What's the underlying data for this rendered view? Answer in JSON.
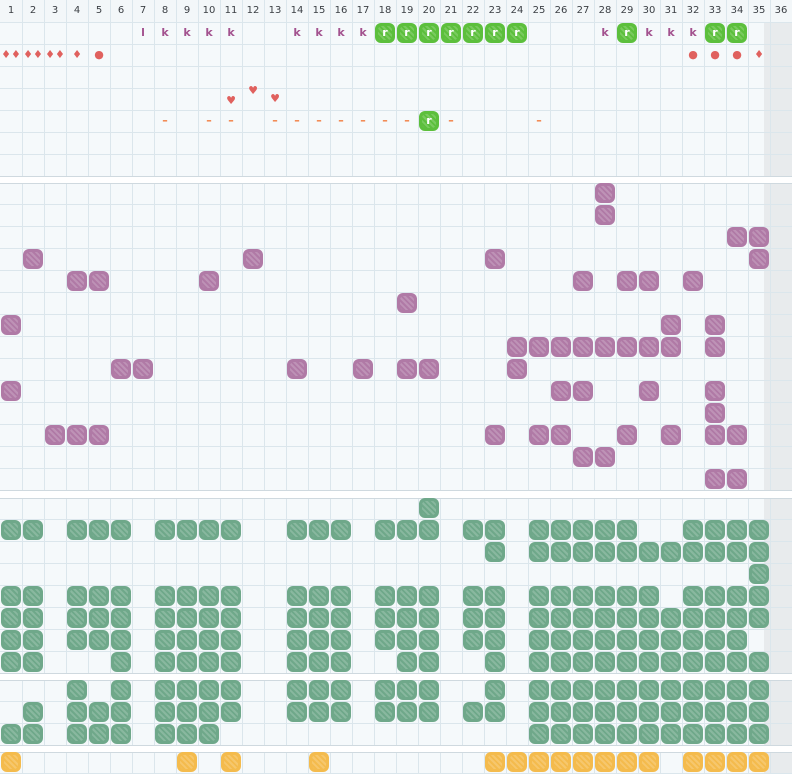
{
  "columns": [
    "1",
    "2",
    "3",
    "4",
    "5",
    "6",
    "7",
    "8",
    "9",
    "10",
    "11",
    "12",
    "13",
    "14",
    "15",
    "16",
    "17",
    "18",
    "19",
    "20",
    "21",
    "22",
    "23",
    "24",
    "25",
    "26",
    "27",
    "28",
    "29",
    "30",
    "31",
    "32",
    "33",
    "34",
    "35",
    "36"
  ],
  "colors": {
    "purple": "#b07aa6",
    "green": "#6fa88a",
    "orange": "#f4bb4d",
    "lime": "#5cbf3c",
    "accent_red": "#e0615e",
    "dash": "#f27b3c"
  },
  "icons": {
    "k": "k",
    "l": "l",
    "dash": "–",
    "heart": "♥",
    "drop": "♦",
    "dot": "●"
  },
  "top_rows": {
    "row1": [
      {
        "col": 7,
        "t": "l"
      },
      {
        "col": 8,
        "t": "k"
      },
      {
        "col": 9,
        "t": "k"
      },
      {
        "col": 10,
        "t": "k"
      },
      {
        "col": 11,
        "t": "k"
      },
      {
        "col": 14,
        "t": "k"
      },
      {
        "col": 15,
        "t": "k"
      },
      {
        "col": 16,
        "t": "k"
      },
      {
        "col": 17,
        "t": "k"
      },
      {
        "col": 28,
        "t": "k"
      },
      {
        "col": 30,
        "t": "k"
      },
      {
        "col": 31,
        "t": "k"
      },
      {
        "col": 32,
        "t": "k"
      }
    ],
    "row1_lime": [
      18,
      19,
      20,
      21,
      22,
      23,
      24,
      29,
      33,
      34
    ],
    "row2": [
      {
        "col": 1,
        "t": "♦♦"
      },
      {
        "col": 2,
        "t": "♦♦"
      },
      {
        "col": 3,
        "t": "♦♦"
      },
      {
        "col": 4,
        "t": "♦"
      },
      {
        "col": 5,
        "t": "●"
      },
      {
        "col": 32,
        "t": "●"
      },
      {
        "col": 33,
        "t": "●"
      },
      {
        "col": 34,
        "t": "●"
      },
      {
        "col": 35,
        "t": "♦"
      }
    ],
    "row4": [
      {
        "col": 11,
        "t": "♥"
      },
      {
        "col": 12,
        "t": "♥"
      },
      {
        "col": 13,
        "t": "♥"
      }
    ],
    "row5": [
      {
        "col": 8,
        "t": "–"
      },
      {
        "col": 10,
        "t": "–"
      },
      {
        "col": 11,
        "t": "–"
      },
      {
        "col": 13,
        "t": "–"
      },
      {
        "col": 14,
        "t": "–"
      },
      {
        "col": 15,
        "t": "–"
      },
      {
        "col": 16,
        "t": "–"
      },
      {
        "col": 17,
        "t": "–"
      },
      {
        "col": 18,
        "t": "–"
      },
      {
        "col": 19,
        "t": "–"
      },
      {
        "col": 21,
        "t": "–"
      },
      {
        "col": 25,
        "t": "–"
      }
    ],
    "row5_lime": [
      20
    ]
  },
  "purple": [
    [
      28,
      0
    ],
    [
      28,
      1
    ],
    [
      34,
      2
    ],
    [
      35,
      2
    ],
    [
      2,
      3
    ],
    [
      12,
      3
    ],
    [
      23,
      3
    ],
    [
      35,
      3
    ],
    [
      4,
      4
    ],
    [
      5,
      4
    ],
    [
      10,
      4
    ],
    [
      27,
      4
    ],
    [
      29,
      4
    ],
    [
      30,
      4
    ],
    [
      32,
      4
    ],
    [
      19,
      5
    ],
    [
      1,
      6
    ],
    [
      31,
      6
    ],
    [
      33,
      6
    ],
    [
      24,
      7
    ],
    [
      25,
      7
    ],
    [
      26,
      7
    ],
    [
      27,
      7
    ],
    [
      28,
      7
    ],
    [
      29,
      7
    ],
    [
      30,
      7
    ],
    [
      31,
      7
    ],
    [
      33,
      7
    ],
    [
      6,
      8
    ],
    [
      7,
      8
    ],
    [
      14,
      8
    ],
    [
      17,
      8
    ],
    [
      19,
      8
    ],
    [
      20,
      8
    ],
    [
      24,
      8
    ],
    [
      1,
      9
    ],
    [
      26,
      9
    ],
    [
      27,
      9
    ],
    [
      30,
      9
    ],
    [
      33,
      9
    ],
    [
      33,
      10
    ],
    [
      3,
      11
    ],
    [
      4,
      11
    ],
    [
      5,
      11
    ],
    [
      23,
      11
    ],
    [
      25,
      11
    ],
    [
      26,
      11
    ],
    [
      29,
      11
    ],
    [
      31,
      11
    ],
    [
      33,
      11
    ],
    [
      34,
      11
    ],
    [
      27,
      12
    ],
    [
      28,
      12
    ],
    [
      33,
      13
    ],
    [
      34,
      13
    ]
  ],
  "green_top": [
    [
      20,
      0
    ],
    [
      1,
      1
    ],
    [
      2,
      1
    ],
    [
      4,
      1
    ],
    [
      5,
      1
    ],
    [
      6,
      1
    ],
    [
      8,
      1
    ],
    [
      9,
      1
    ],
    [
      10,
      1
    ],
    [
      11,
      1
    ],
    [
      14,
      1
    ],
    [
      15,
      1
    ],
    [
      16,
      1
    ],
    [
      18,
      1
    ],
    [
      19,
      1
    ],
    [
      20,
      1
    ],
    [
      22,
      1
    ],
    [
      23,
      1
    ],
    [
      25,
      1
    ],
    [
      26,
      1
    ],
    [
      27,
      1
    ],
    [
      28,
      1
    ],
    [
      29,
      1
    ],
    [
      32,
      1
    ],
    [
      33,
      1
    ],
    [
      34,
      1
    ],
    [
      35,
      1
    ],
    [
      23,
      2
    ],
    [
      25,
      2
    ],
    [
      26,
      2
    ],
    [
      27,
      2
    ],
    [
      28,
      2
    ],
    [
      29,
      2
    ],
    [
      30,
      2
    ],
    [
      31,
      2
    ],
    [
      32,
      2
    ],
    [
      33,
      2
    ],
    [
      34,
      2
    ],
    [
      35,
      2
    ],
    [
      35,
      3
    ],
    [
      1,
      4
    ],
    [
      2,
      4
    ],
    [
      4,
      4
    ],
    [
      5,
      4
    ],
    [
      6,
      4
    ],
    [
      8,
      4
    ],
    [
      9,
      4
    ],
    [
      10,
      4
    ],
    [
      11,
      4
    ],
    [
      14,
      4
    ],
    [
      15,
      4
    ],
    [
      16,
      4
    ],
    [
      18,
      4
    ],
    [
      19,
      4
    ],
    [
      20,
      4
    ],
    [
      22,
      4
    ],
    [
      23,
      4
    ],
    [
      25,
      4
    ],
    [
      26,
      4
    ],
    [
      27,
      4
    ],
    [
      28,
      4
    ],
    [
      29,
      4
    ],
    [
      30,
      4
    ],
    [
      32,
      4
    ],
    [
      33,
      4
    ],
    [
      34,
      4
    ],
    [
      35,
      4
    ],
    [
      1,
      5
    ],
    [
      2,
      5
    ],
    [
      4,
      5
    ],
    [
      5,
      5
    ],
    [
      6,
      5
    ],
    [
      8,
      5
    ],
    [
      9,
      5
    ],
    [
      10,
      5
    ],
    [
      11,
      5
    ],
    [
      14,
      5
    ],
    [
      15,
      5
    ],
    [
      16,
      5
    ],
    [
      18,
      5
    ],
    [
      19,
      5
    ],
    [
      20,
      5
    ],
    [
      22,
      5
    ],
    [
      23,
      5
    ],
    [
      25,
      5
    ],
    [
      26,
      5
    ],
    [
      27,
      5
    ],
    [
      28,
      5
    ],
    [
      29,
      5
    ],
    [
      30,
      5
    ],
    [
      31,
      5
    ],
    [
      32,
      5
    ],
    [
      33,
      5
    ],
    [
      34,
      5
    ],
    [
      35,
      5
    ],
    [
      1,
      6
    ],
    [
      2,
      6
    ],
    [
      4,
      6
    ],
    [
      5,
      6
    ],
    [
      6,
      6
    ],
    [
      8,
      6
    ],
    [
      9,
      6
    ],
    [
      10,
      6
    ],
    [
      11,
      6
    ],
    [
      14,
      6
    ],
    [
      15,
      6
    ],
    [
      16,
      6
    ],
    [
      18,
      6
    ],
    [
      19,
      6
    ],
    [
      20,
      6
    ],
    [
      22,
      6
    ],
    [
      23,
      6
    ],
    [
      25,
      6
    ],
    [
      26,
      6
    ],
    [
      27,
      6
    ],
    [
      28,
      6
    ],
    [
      29,
      6
    ],
    [
      30,
      6
    ],
    [
      31,
      6
    ],
    [
      32,
      6
    ],
    [
      33,
      6
    ],
    [
      34,
      6
    ],
    [
      1,
      7
    ],
    [
      2,
      7
    ],
    [
      6,
      7
    ],
    [
      8,
      7
    ],
    [
      9,
      7
    ],
    [
      10,
      7
    ],
    [
      11,
      7
    ],
    [
      14,
      7
    ],
    [
      15,
      7
    ],
    [
      16,
      7
    ],
    [
      19,
      7
    ],
    [
      20,
      7
    ],
    [
      23,
      7
    ],
    [
      25,
      7
    ],
    [
      26,
      7
    ],
    [
      27,
      7
    ],
    [
      28,
      7
    ],
    [
      29,
      7
    ],
    [
      30,
      7
    ],
    [
      31,
      7
    ],
    [
      32,
      7
    ],
    [
      33,
      7
    ],
    [
      34,
      7
    ],
    [
      35,
      7
    ]
  ],
  "green_bottom": [
    [
      4,
      0
    ],
    [
      6,
      0
    ],
    [
      8,
      0
    ],
    [
      9,
      0
    ],
    [
      10,
      0
    ],
    [
      11,
      0
    ],
    [
      14,
      0
    ],
    [
      15,
      0
    ],
    [
      16,
      0
    ],
    [
      18,
      0
    ],
    [
      19,
      0
    ],
    [
      20,
      0
    ],
    [
      23,
      0
    ],
    [
      25,
      0
    ],
    [
      26,
      0
    ],
    [
      27,
      0
    ],
    [
      28,
      0
    ],
    [
      29,
      0
    ],
    [
      30,
      0
    ],
    [
      31,
      0
    ],
    [
      32,
      0
    ],
    [
      33,
      0
    ],
    [
      34,
      0
    ],
    [
      35,
      0
    ],
    [
      2,
      1
    ],
    [
      4,
      1
    ],
    [
      5,
      1
    ],
    [
      6,
      1
    ],
    [
      8,
      1
    ],
    [
      9,
      1
    ],
    [
      10,
      1
    ],
    [
      11,
      1
    ],
    [
      14,
      1
    ],
    [
      15,
      1
    ],
    [
      16,
      1
    ],
    [
      18,
      1
    ],
    [
      19,
      1
    ],
    [
      20,
      1
    ],
    [
      22,
      1
    ],
    [
      23,
      1
    ],
    [
      25,
      1
    ],
    [
      26,
      1
    ],
    [
      27,
      1
    ],
    [
      28,
      1
    ],
    [
      29,
      1
    ],
    [
      30,
      1
    ],
    [
      31,
      1
    ],
    [
      32,
      1
    ],
    [
      33,
      1
    ],
    [
      34,
      1
    ],
    [
      35,
      1
    ],
    [
      1,
      2
    ],
    [
      2,
      2
    ],
    [
      4,
      2
    ],
    [
      5,
      2
    ],
    [
      6,
      2
    ],
    [
      8,
      2
    ],
    [
      9,
      2
    ],
    [
      10,
      2
    ],
    [
      25,
      2
    ],
    [
      26,
      2
    ],
    [
      27,
      2
    ],
    [
      28,
      2
    ],
    [
      29,
      2
    ],
    [
      30,
      2
    ],
    [
      31,
      2
    ],
    [
      32,
      2
    ],
    [
      33,
      2
    ],
    [
      34,
      2
    ],
    [
      35,
      2
    ]
  ],
  "orange": [
    1,
    9,
    11,
    15,
    23,
    24,
    25,
    26,
    27,
    28,
    29,
    30,
    32,
    33,
    34,
    35
  ]
}
